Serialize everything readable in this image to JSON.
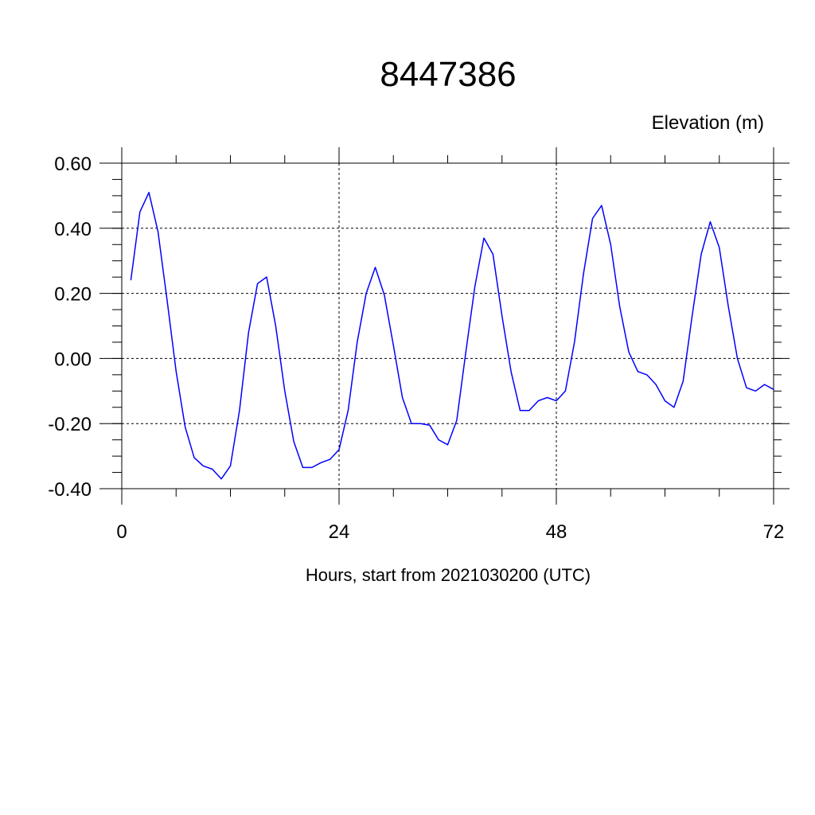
{
  "chart_data": {
    "type": "line",
    "title": "8447386",
    "ylabel": "Elevation (m)",
    "xlabel": "Hours, start from 2021030200 (UTC)",
    "xlim": [
      0,
      72
    ],
    "ylim": [
      -0.4,
      0.6
    ],
    "xticks": [
      0,
      24,
      48,
      72
    ],
    "xtick_labels": [
      "0",
      "24",
      "48",
      "72"
    ],
    "yticks": [
      -0.4,
      -0.2,
      0.0,
      0.2,
      0.4,
      0.6
    ],
    "ytick_labels": [
      "-0.40",
      "-0.20",
      "0.00",
      "0.20",
      "0.40",
      "0.60"
    ],
    "grid": true,
    "series": [
      {
        "color": "#0000ff",
        "x": [
          1,
          2,
          3,
          4,
          5,
          6,
          7,
          8,
          9,
          10,
          11,
          12,
          13,
          14,
          15,
          16,
          17,
          18,
          19,
          20,
          21,
          22,
          23,
          24,
          25,
          26,
          27,
          28,
          29,
          30,
          31,
          32,
          33,
          34,
          35,
          36,
          37,
          38,
          39,
          40,
          41,
          42,
          43,
          44,
          45,
          46,
          47,
          48,
          49,
          50,
          51,
          52,
          53,
          54,
          55,
          56,
          57,
          58,
          59,
          60,
          61,
          62,
          63,
          64,
          65,
          66,
          67,
          68,
          69,
          70,
          71,
          72
        ],
        "values": [
          0.24,
          0.45,
          0.51,
          0.39,
          0.18,
          -0.04,
          -0.21,
          -0.305,
          -0.33,
          -0.34,
          -0.37,
          -0.33,
          -0.16,
          0.08,
          0.23,
          0.25,
          0.1,
          -0.1,
          -0.255,
          -0.335,
          -0.335,
          -0.32,
          -0.31,
          -0.28,
          -0.16,
          0.05,
          0.2,
          0.28,
          0.195,
          0.04,
          -0.12,
          -0.2,
          -0.2,
          -0.205,
          -0.25,
          -0.265,
          -0.19,
          0.02,
          0.22,
          0.37,
          0.32,
          0.13,
          -0.04,
          -0.16,
          -0.16,
          -0.13,
          -0.12,
          -0.13,
          -0.1,
          0.05,
          0.26,
          0.43,
          0.47,
          0.35,
          0.16,
          0.02,
          -0.04,
          -0.05,
          -0.08,
          -0.13,
          -0.15,
          -0.07,
          0.13,
          0.32,
          0.42,
          0.34,
          0.16,
          0.0,
          -0.09,
          -0.1,
          -0.08,
          -0.095
        ]
      }
    ]
  }
}
